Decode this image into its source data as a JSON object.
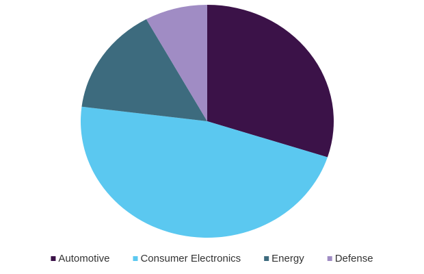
{
  "chart_data": {
    "type": "pie",
    "categories": [
      "Automotive",
      "Consumer Electronics",
      "Energy",
      "Defense"
    ],
    "values": [
      30,
      47,
      15,
      8
    ],
    "colors": [
      "#3b1248",
      "#5bc8f0",
      "#3d6b7e",
      "#a08cc4"
    ],
    "legend": "bottom"
  }
}
